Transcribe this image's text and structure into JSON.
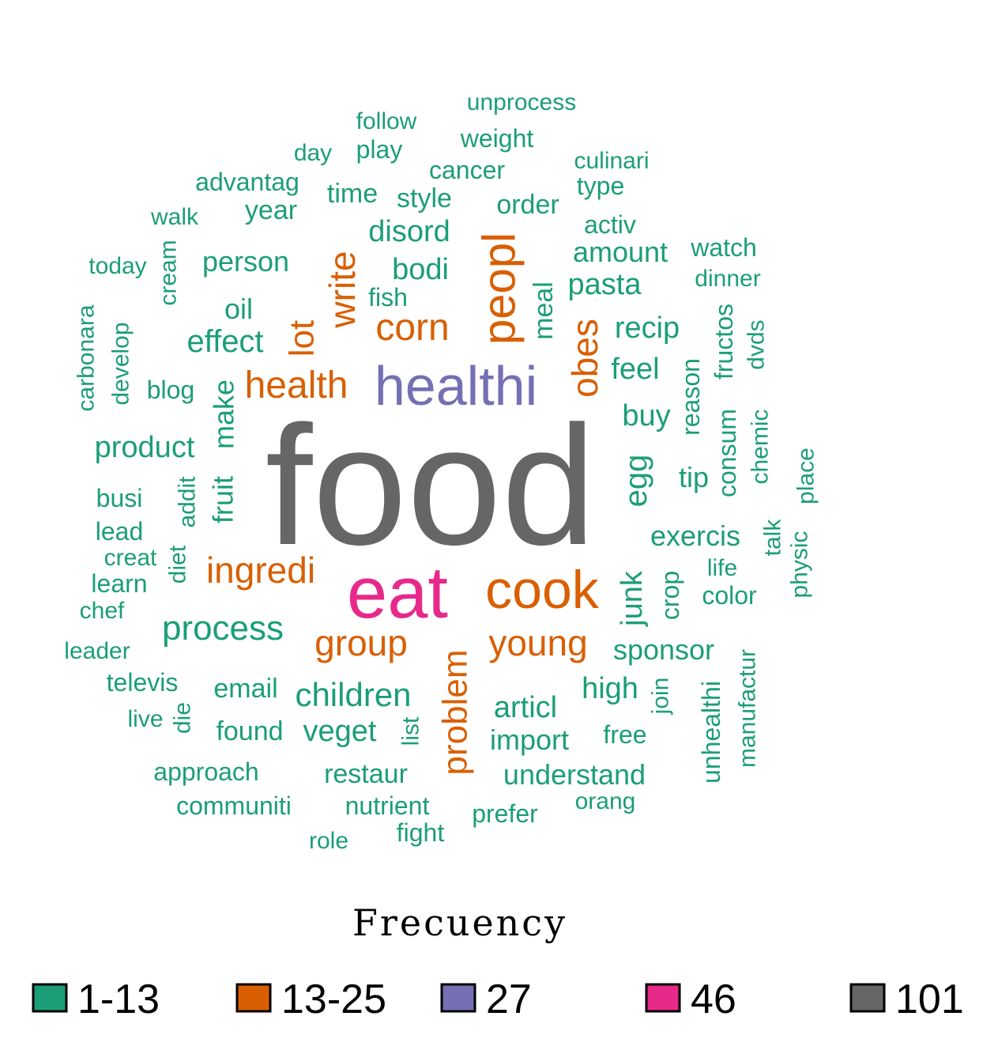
{
  "chart_data": {
    "type": "wordcloud",
    "legend": {
      "title": "Frecuency",
      "items": [
        {
          "label": "1-13",
          "color": "#1b9e77"
        },
        {
          "label": "13-25",
          "color": "#d95f02"
        },
        {
          "label": "27",
          "color": "#7570b3"
        },
        {
          "label": "46",
          "color": "#e7298a"
        },
        {
          "label": "101",
          "color": "#666666"
        }
      ]
    },
    "words": [
      {
        "text": "food",
        "group": "101"
      },
      {
        "text": "eat",
        "group": "46"
      },
      {
        "text": "healthi",
        "group": "27"
      },
      {
        "text": "cook",
        "group": "13-25"
      },
      {
        "text": "peopl",
        "group": "13-25"
      },
      {
        "text": "health",
        "group": "13-25"
      },
      {
        "text": "corn",
        "group": "13-25"
      },
      {
        "text": "write",
        "group": "13-25"
      },
      {
        "text": "lot",
        "group": "13-25"
      },
      {
        "text": "obes",
        "group": "13-25"
      },
      {
        "text": "ingredi",
        "group": "13-25"
      },
      {
        "text": "group",
        "group": "13-25"
      },
      {
        "text": "young",
        "group": "13-25"
      },
      {
        "text": "problem",
        "group": "13-25"
      },
      {
        "text": "unprocess",
        "group": "1-13"
      },
      {
        "text": "follow",
        "group": "1-13"
      },
      {
        "text": "weight",
        "group": "1-13"
      },
      {
        "text": "day",
        "group": "1-13"
      },
      {
        "text": "play",
        "group": "1-13"
      },
      {
        "text": "cancer",
        "group": "1-13"
      },
      {
        "text": "culinari",
        "group": "1-13"
      },
      {
        "text": "advantag",
        "group": "1-13"
      },
      {
        "text": "time",
        "group": "1-13"
      },
      {
        "text": "style",
        "group": "1-13"
      },
      {
        "text": "type",
        "group": "1-13"
      },
      {
        "text": "walk",
        "group": "1-13"
      },
      {
        "text": "year",
        "group": "1-13"
      },
      {
        "text": "order",
        "group": "1-13"
      },
      {
        "text": "disord",
        "group": "1-13"
      },
      {
        "text": "activ",
        "group": "1-13"
      },
      {
        "text": "today",
        "group": "1-13"
      },
      {
        "text": "cream",
        "group": "1-13"
      },
      {
        "text": "person",
        "group": "1-13"
      },
      {
        "text": "bodi",
        "group": "1-13"
      },
      {
        "text": "amount",
        "group": "1-13"
      },
      {
        "text": "watch",
        "group": "1-13"
      },
      {
        "text": "dinner",
        "group": "1-13"
      },
      {
        "text": "fish",
        "group": "1-13"
      },
      {
        "text": "meal",
        "group": "1-13"
      },
      {
        "text": "pasta",
        "group": "1-13"
      },
      {
        "text": "oil",
        "group": "1-13"
      },
      {
        "text": "carbonara",
        "group": "1-13"
      },
      {
        "text": "develop",
        "group": "1-13"
      },
      {
        "text": "effect",
        "group": "1-13"
      },
      {
        "text": "recip",
        "group": "1-13"
      },
      {
        "text": "fructos",
        "group": "1-13"
      },
      {
        "text": "dvds",
        "group": "1-13"
      },
      {
        "text": "blog",
        "group": "1-13"
      },
      {
        "text": "make",
        "group": "1-13"
      },
      {
        "text": "feel",
        "group": "1-13"
      },
      {
        "text": "reason",
        "group": "1-13"
      },
      {
        "text": "buy",
        "group": "1-13"
      },
      {
        "text": "product",
        "group": "1-13"
      },
      {
        "text": "consum",
        "group": "1-13"
      },
      {
        "text": "chemic",
        "group": "1-13"
      },
      {
        "text": "fruit",
        "group": "1-13"
      },
      {
        "text": "egg",
        "group": "1-13"
      },
      {
        "text": "tip",
        "group": "1-13"
      },
      {
        "text": "place",
        "group": "1-13"
      },
      {
        "text": "busi",
        "group": "1-13"
      },
      {
        "text": "addit",
        "group": "1-13"
      },
      {
        "text": "lead",
        "group": "1-13"
      },
      {
        "text": "exercis",
        "group": "1-13"
      },
      {
        "text": "talk",
        "group": "1-13"
      },
      {
        "text": "creat",
        "group": "1-13"
      },
      {
        "text": "diet",
        "group": "1-13"
      },
      {
        "text": "life",
        "group": "1-13"
      },
      {
        "text": "physic",
        "group": "1-13"
      },
      {
        "text": "learn",
        "group": "1-13"
      },
      {
        "text": "junk",
        "group": "1-13"
      },
      {
        "text": "crop",
        "group": "1-13"
      },
      {
        "text": "color",
        "group": "1-13"
      },
      {
        "text": "chef",
        "group": "1-13"
      },
      {
        "text": "process",
        "group": "1-13"
      },
      {
        "text": "sponsor",
        "group": "1-13"
      },
      {
        "text": "leader",
        "group": "1-13"
      },
      {
        "text": "manufactur",
        "group": "1-13"
      },
      {
        "text": "televis",
        "group": "1-13"
      },
      {
        "text": "email",
        "group": "1-13"
      },
      {
        "text": "children",
        "group": "1-13"
      },
      {
        "text": "high",
        "group": "1-13"
      },
      {
        "text": "join",
        "group": "1-13"
      },
      {
        "text": "unhealthi",
        "group": "1-13"
      },
      {
        "text": "articl",
        "group": "1-13"
      },
      {
        "text": "live",
        "group": "1-13"
      },
      {
        "text": "die",
        "group": "1-13"
      },
      {
        "text": "found",
        "group": "1-13"
      },
      {
        "text": "veget",
        "group": "1-13"
      },
      {
        "text": "list",
        "group": "1-13"
      },
      {
        "text": "free",
        "group": "1-13"
      },
      {
        "text": "import",
        "group": "1-13"
      },
      {
        "text": "approach",
        "group": "1-13"
      },
      {
        "text": "restaur",
        "group": "1-13"
      },
      {
        "text": "understand",
        "group": "1-13"
      },
      {
        "text": "orang",
        "group": "1-13"
      },
      {
        "text": "communiti",
        "group": "1-13"
      },
      {
        "text": "nutrient",
        "group": "1-13"
      },
      {
        "text": "prefer",
        "group": "1-13"
      },
      {
        "text": "fight",
        "group": "1-13"
      },
      {
        "text": "role",
        "group": "1-13"
      }
    ]
  }
}
